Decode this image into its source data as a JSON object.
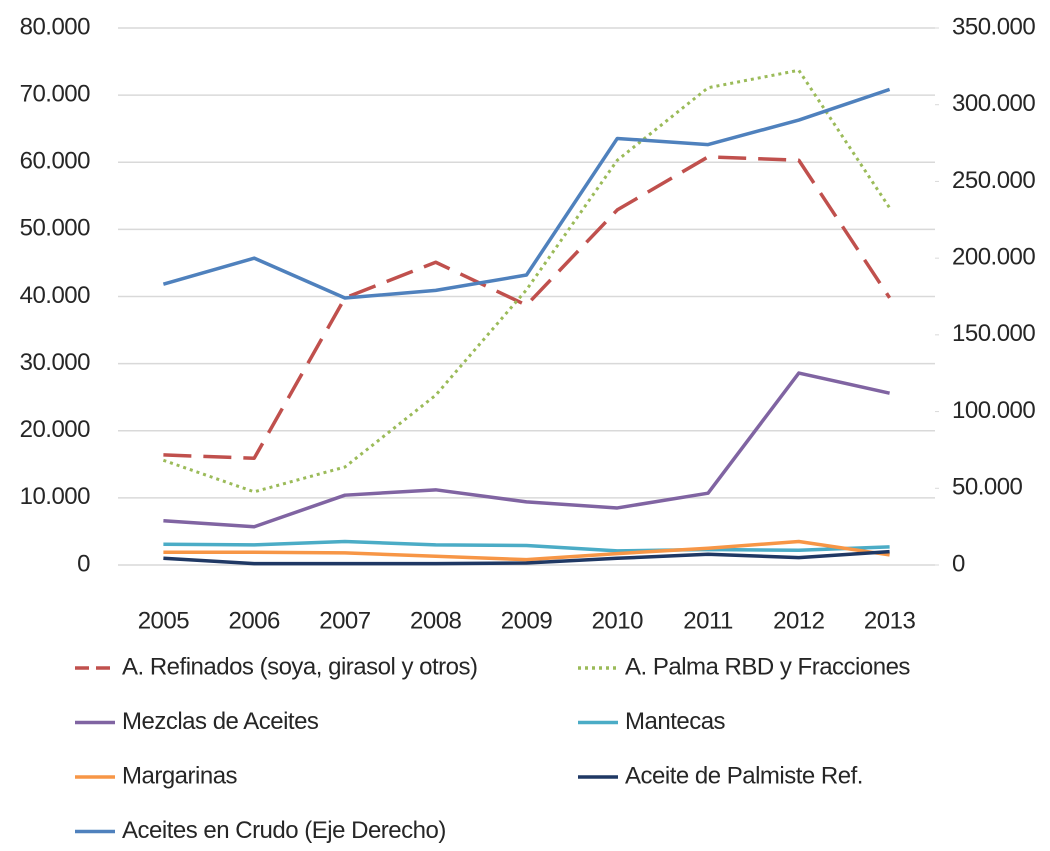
{
  "chart_data": {
    "type": "line",
    "categories": [
      "2005",
      "2006",
      "2007",
      "2008",
      "2009",
      "2010",
      "2011",
      "2012",
      "2013"
    ],
    "series": [
      {
        "name": "A. Refinados (soya, girasol y otros)",
        "color": "#c0504d",
        "style": "dashed",
        "values": [
          16400,
          15900,
          39800,
          45100,
          38700,
          52900,
          60800,
          60300,
          39800
        ]
      },
      {
        "name": "A. Palma RBD y Fracciones",
        "color": "#9bbb59",
        "style": "dotted",
        "values": [
          15600,
          10900,
          14600,
          25300,
          41000,
          60300,
          71100,
          73700,
          53200
        ]
      },
      {
        "name": "Mezclas de Aceites",
        "color": "#8064a2",
        "style": "solid",
        "values": [
          6600,
          5700,
          10400,
          11200,
          9400,
          8500,
          10700,
          28600,
          25600
        ]
      },
      {
        "name": "Mantecas",
        "color": "#4bacc6",
        "style": "solid",
        "values": [
          3100,
          3000,
          3500,
          3000,
          2900,
          2100,
          2300,
          2200,
          2700
        ]
      },
      {
        "name": "Margarinas",
        "color": "#f79646",
        "style": "solid",
        "values": [
          1900,
          1900,
          1800,
          1300,
          800,
          1700,
          2500,
          3500,
          1500
        ]
      },
      {
        "name": "Aceite de Palmiste Ref.",
        "color": "#1f3864",
        "style": "solid",
        "values": [
          1000,
          200,
          200,
          200,
          300,
          1000,
          1600,
          1100,
          2000
        ]
      },
      {
        "name": "Aceites en Crudo (Eje Derecho)",
        "color": "#4f81bd",
        "style": "solid",
        "axis": "y2",
        "values": [
          183000,
          200000,
          174000,
          179000,
          189000,
          278000,
          274000,
          290000,
          310000
        ]
      }
    ],
    "ylim": [
      0,
      80000
    ],
    "yticks": [
      0,
      {
        "value": 10000,
        "label": "10.000"
      },
      {
        "value": 20000,
        "label": "20.000"
      },
      {
        "value": 30000,
        "label": "30.000"
      },
      {
        "value": 40000,
        "label": "40.000"
      },
      {
        "value": 50000,
        "label": "50.000"
      },
      {
        "value": 60000,
        "label": "60.000"
      },
      {
        "value": 70000,
        "label": "70.000"
      },
      {
        "value": 80000,
        "label": "80.000"
      }
    ],
    "y2lim": [
      0,
      350000
    ],
    "y2ticks": [
      0,
      {
        "value": 50000,
        "label": "50.000"
      },
      {
        "value": 100000,
        "label": "100.000"
      },
      {
        "value": 150000,
        "label": "150.000"
      },
      {
        "value": 200000,
        "label": "200.000"
      },
      {
        "value": 250000,
        "label": "250.000"
      },
      {
        "value": 300000,
        "label": "300.000"
      },
      {
        "value": 350000,
        "label": "350.000"
      }
    ],
    "grid": true,
    "legend": "bottom"
  }
}
